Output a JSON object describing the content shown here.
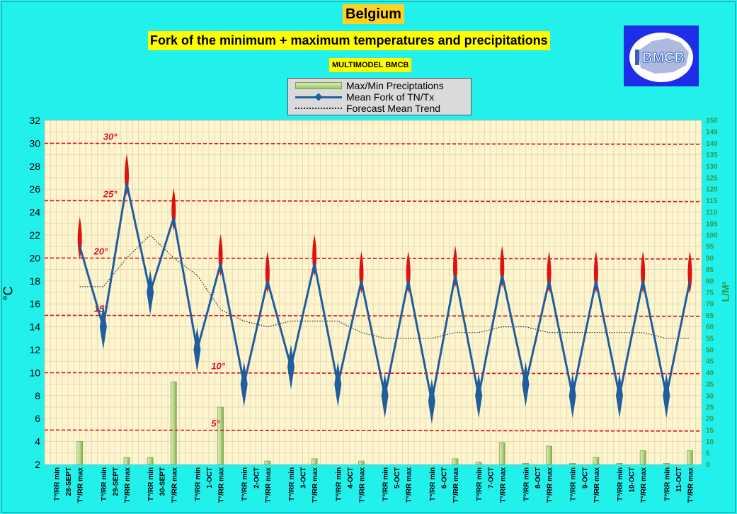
{
  "header": {
    "title": "Belgium",
    "subtitle": "Fork of the minimum + maximum temperatures and precipitations",
    "model": "MULTIMODEL BMCB",
    "logo_text": "BMCB"
  },
  "legend": {
    "items": [
      "Max/Min Preciptations",
      "Mean Fork of TN/Tx",
      "Forecast Mean Trend"
    ]
  },
  "colors": {
    "background": "#22F0EA",
    "plot_area": "#FFF5CC",
    "fork_line": "#1F5E9E",
    "bars": "#9cc46a",
    "threshold": "#E0111A",
    "right_axis": "#2E9A4A"
  },
  "chart_data": {
    "type": "line",
    "title": "Fork of the minimum + maximum temperatures and precipitations",
    "ylabel": "°C",
    "y2label": "L/M²",
    "ylim": [
      2,
      32
    ],
    "y2lim": [
      0,
      150
    ],
    "yticks": [
      2,
      4,
      6,
      8,
      10,
      12,
      14,
      16,
      18,
      20,
      22,
      24,
      26,
      28,
      30,
      32
    ],
    "y2ticks": [
      0,
      5,
      10,
      15,
      20,
      25,
      30,
      35,
      40,
      45,
      50,
      55,
      60,
      65,
      70,
      75,
      80,
      85,
      90,
      95,
      100,
      105,
      110,
      115,
      120,
      125,
      130,
      135,
      140,
      145,
      150
    ],
    "grid": true,
    "categories": [
      "T°/RR min",
      "T°/RR max",
      "T°/RR min",
      "T°/RR max",
      "T°/RR min",
      "T°/RR max",
      "T°/RR min",
      "T°/RR max",
      "T°/RR min",
      "T°/RR max",
      "T°/RR min",
      "T°/RR max",
      "T°/RR min",
      "T°/RR max",
      "T°/RR min",
      "T°/RR max",
      "T°/RR min",
      "T°/RR max",
      "T°/RR min",
      "T°/RR max",
      "T°/RR min",
      "T°/RR max",
      "T°/RR min",
      "T°/RR max",
      "T°/RR min",
      "T°/RR max",
      "T°/RR min",
      "T°/RR max"
    ],
    "dates": [
      "28-SEPT",
      "29-SEPT",
      "30-SEPT",
      "1-OCT",
      "2-OCT",
      "3-OCT",
      "4-OCT",
      "5-OCT",
      "6-OCT",
      "7-OCT",
      "8-OCT",
      "9-OCT",
      "10-OCT",
      "11-OCT"
    ],
    "series": [
      {
        "name": "Mean Fork of TN/Tx",
        "values": [
          null,
          21.0,
          14.0,
          26.5,
          17.0,
          23.5,
          12.0,
          19.5,
          9.0,
          18.0,
          10.5,
          19.5,
          9.0,
          18.0,
          8.0,
          18.0,
          7.5,
          18.5,
          8.0,
          18.5,
          9.0,
          18.0,
          8.0,
          18.0,
          8.0,
          18.0,
          8.0,
          18.0
        ]
      },
      {
        "name": "Max/Min Preciptations",
        "values": [
          0,
          10,
          0,
          3,
          3,
          36,
          0,
          25,
          0,
          1.5,
          0,
          2.5,
          0,
          1.5,
          0,
          0,
          0,
          2.5,
          1,
          9.5,
          0.5,
          8,
          0.5,
          3,
          0.5,
          6,
          0.5,
          6
        ]
      },
      {
        "name": "Forecast Mean Trend",
        "values": [
          null,
          17.5,
          17.5,
          20.0,
          22.0,
          20.0,
          18.5,
          15.5,
          14.5,
          14.0,
          14.5,
          14.5,
          14.5,
          13.5,
          13.0,
          13.0,
          13.0,
          13.5,
          13.5,
          14.0,
          14.0,
          13.5,
          13.5,
          13.5,
          13.5,
          13.5,
          13.0,
          13.0
        ]
      }
    ],
    "thresholds": [
      {
        "value": 30,
        "label": "30°"
      },
      {
        "value": 25,
        "label": "25°"
      },
      {
        "value": 20,
        "label": "20°"
      },
      {
        "value": 15,
        "label": "15°"
      },
      {
        "value": 10,
        "label": "10°"
      },
      {
        "value": 5,
        "label": "5°"
      }
    ],
    "threshold_label_fifth": "5°"
  }
}
